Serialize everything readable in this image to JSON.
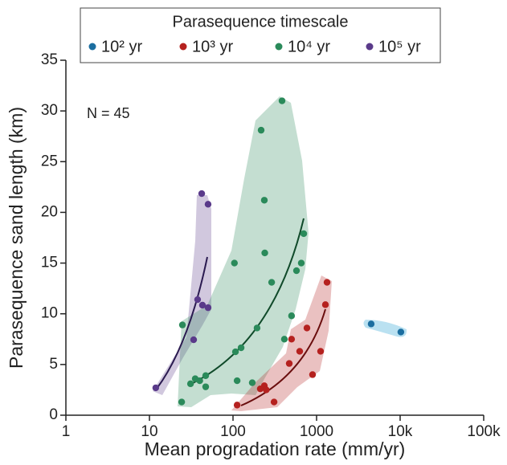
{
  "chart_data": {
    "type": "scatter",
    "legend_title": "Parasequence timescale",
    "annotation": "N = 45",
    "xlabel": "Mean progradation rate (mm/yr)",
    "ylabel": "Parasequence sand length (km)",
    "xscale": "log",
    "xlim": [
      1,
      100000
    ],
    "ylim": [
      0,
      35
    ],
    "xticks": [
      1,
      10,
      100,
      1000,
      {
        "value": 10000,
        "label": "10k"
      },
      {
        "value": 100000,
        "label": "100k"
      }
    ],
    "yticks": [
      0,
      5,
      10,
      15,
      20,
      25,
      30,
      35
    ],
    "legend": "top",
    "series": [
      {
        "name": "10² yr",
        "color": "#1b6ea0",
        "x": [
          4500,
          10200
        ],
        "values": [
          9.0,
          8.2
        ]
      },
      {
        "name": "10³ yr",
        "color": "#b5211f",
        "x": [
          1334,
          1276,
          767,
          1117,
          502,
          628,
          471,
          895,
          237,
          212,
          250,
          310,
          112
        ],
        "values": [
          13.1,
          10.9,
          8.6,
          6.3,
          7.5,
          6.3,
          5.1,
          4.0,
          2.9,
          2.6,
          2.5,
          1.3,
          1.0
        ]
      },
      {
        "name": "10⁴ yr",
        "color": "#2a8a5a",
        "x": [
          386,
          217,
          237,
          240,
          702,
          104,
          656,
          575,
          290,
          24.8,
          194,
          502,
          412,
          125,
          107,
          35.3,
          40,
          47.1,
          31,
          47.1,
          112,
          170,
          24.3
        ],
        "values": [
          31.0,
          28.1,
          21.2,
          16.0,
          17.9,
          15.0,
          15.0,
          14.25,
          13.1,
          8.9,
          8.6,
          9.8,
          7.5,
          6.65,
          6.25,
          3.6,
          3.4,
          3.9,
          3.1,
          2.8,
          3.4,
          3.2,
          1.3
        ]
      },
      {
        "name": "10⁵ yr",
        "color": "#5a3a8a",
        "x": [
          42.2,
          50.3,
          37.7,
          43.1,
          50.3,
          33.8,
          11.9
        ],
        "values": [
          21.85,
          20.8,
          11.4,
          10.85,
          10.6,
          7.44,
          2.7
        ]
      }
    ]
  }
}
